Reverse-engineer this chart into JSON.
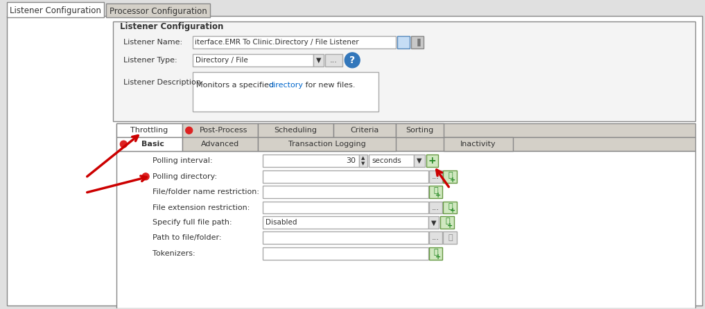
{
  "bg_color": "#e0e0e0",
  "white": "#ffffff",
  "dark_gray": "#333333",
  "mid_gray": "#888888",
  "light_gray": "#cccccc",
  "tab_inactive_bg": "#d4d0c8",
  "inner_bg": "#f4f4f4",
  "gold_text": "#8B6914",
  "blue_text": "#0066cc",
  "red_dot": "#dd2222",
  "arrow_color": "#cc0000",
  "green_icon": "#228822",
  "blue_icon": "#3377bb",
  "tab1_label": "Listener Configuration",
  "tab2_label": "Processor Configuration",
  "section_title": "Listener Configuration",
  "listener_name_value": "iterface.EMR To Clinic.Directory / File Listener",
  "listener_type_value": "Directory / File",
  "listener_desc_value": "Monitors a specified directory for new files.",
  "tabs_row1": [
    "Throttling",
    "Post-Process",
    "Scheduling",
    "Criteria",
    "Sorting"
  ],
  "tabs_row2": [
    "Basic",
    "Advanced",
    "Transaction Logging",
    "Inactivity"
  ],
  "form_fields": [
    {
      "label": "Polling interval:",
      "value": "30",
      "type": "number_seconds"
    },
    {
      "label": "Polling directory:",
      "value": "",
      "type": "text_browse_green",
      "has_red_dot": true
    },
    {
      "label": "File/folder name restriction:",
      "value": "",
      "type": "text_green"
    },
    {
      "label": "File extension restriction:",
      "value": "",
      "type": "text_browse_green"
    },
    {
      "label": "Specify full file path:",
      "value": "Disabled",
      "type": "dropdown_green"
    },
    {
      "label": "Path to file/folder:",
      "value": "",
      "type": "text_browse_gray"
    },
    {
      "label": "Tokenizers:",
      "value": "",
      "type": "text_green"
    }
  ]
}
